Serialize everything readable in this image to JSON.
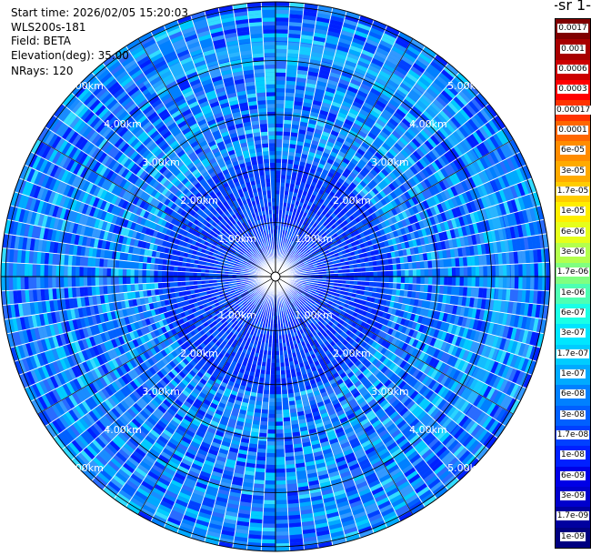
{
  "info": {
    "start_time": "Start time: 2026/02/05 15:20:03",
    "instrument": "WLS200s-181",
    "field": "Field: BETA",
    "elevation": "Elevation(deg): 35.00",
    "nrays": "NRays: 120"
  },
  "colorbar": {
    "unit_label": "-1 sr-",
    "ticks": [
      "0.0017",
      "0.001",
      "0.0006",
      "0.0003",
      "0.00017",
      "0.0001",
      "6e-05",
      "3e-05",
      "1.7e-05",
      "1e-05",
      "6e-06",
      "3e-06",
      "1.7e-06",
      "1e-06",
      "6e-07",
      "3e-07",
      "1.7e-07",
      "1e-07",
      "6e-08",
      "3e-08",
      "1.7e-08",
      "1e-08",
      "6e-09",
      "3e-09",
      "1.7e-09",
      "1e-09"
    ],
    "colors": [
      "#800000",
      "#a80000",
      "#cc0000",
      "#ff0000",
      "#ff3300",
      "#ff6600",
      "#ff8c00",
      "#ffaa00",
      "#ffcc00",
      "#ffee00",
      "#e6ff1a",
      "#b3ff4d",
      "#80ff80",
      "#4dffb3",
      "#1affe6",
      "#00e6ff",
      "#00ccff",
      "#00aaff",
      "#0080ff",
      "#0060ff",
      "#0040ff",
      "#0020ff",
      "#0000e6",
      "#0000cc",
      "#00009f",
      "#000080"
    ]
  },
  "range_labels": {
    "km1": "1.00km",
    "km2": "2.00km",
    "km3": "3.00km",
    "km4": "4.00km",
    "km5": "5.00km"
  },
  "scan": {
    "max_range_km": 5.0,
    "num_rays": 120
  }
}
